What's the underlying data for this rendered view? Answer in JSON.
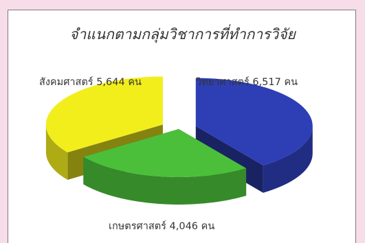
{
  "chart_data": {
    "type": "pie",
    "title": "จำแนกตามกลุ่มวิชาการที่ทำการวิจัย",
    "slices": [
      {
        "label": "วิทยาศาสตร์ 6,517 คน",
        "value": 6517,
        "color": "#2e3fb5",
        "exploded": true
      },
      {
        "label": "เกษตรศาสตร์ 4,046 คน",
        "value": 4046,
        "color": "#4bbf3a",
        "exploded": false
      },
      {
        "label": "สังคมศาสตร์ 5,644 คน",
        "value": 5644,
        "color": "#f2ee1c",
        "exploded": true
      }
    ],
    "style": "3d-exploded"
  }
}
